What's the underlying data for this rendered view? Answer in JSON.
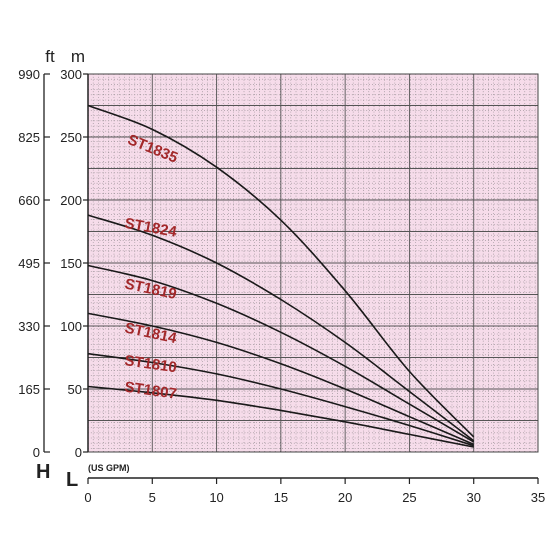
{
  "chart_data": {
    "type": "line",
    "title": "",
    "xlabel": "L",
    "xunit": "(US GPM)",
    "ylabel": "H",
    "y_unit_left": "ft",
    "y_unit_right": "m",
    "xlim": [
      0,
      35
    ],
    "x_ticks": [
      0,
      5,
      10,
      15,
      20,
      25,
      30,
      35
    ],
    "ylim_m": [
      0,
      300
    ],
    "y_ticks_m": [
      0,
      50,
      100,
      150,
      200,
      250,
      300
    ],
    "y_ticks_ft": [
      0,
      165,
      330,
      495,
      660,
      825,
      990
    ],
    "grid": true,
    "background_color": "#f6dcea",
    "grid_color": "#555555",
    "label_color": "#a3282a",
    "line_color": "#1a1a1a",
    "series": [
      {
        "name": "ST1835",
        "label_at": [
          3.0,
          245
        ],
        "label_angle": 22,
        "x": [
          0,
          5,
          10,
          15,
          20,
          25,
          30
        ],
        "values": [
          275,
          256,
          226,
          184,
          128,
          64,
          12
        ]
      },
      {
        "name": "ST1824",
        "label_at": [
          2.8,
          178
        ],
        "label_angle": 10,
        "x": [
          0,
          5,
          10,
          15,
          20,
          25,
          30
        ],
        "values": [
          188,
          172,
          150,
          121,
          87,
          48,
          9
        ]
      },
      {
        "name": "ST1819",
        "label_at": [
          2.8,
          130
        ],
        "label_angle": 12,
        "x": [
          0,
          5,
          10,
          15,
          20,
          25,
          30
        ],
        "values": [
          148,
          136,
          118,
          95,
          68,
          38,
          8
        ]
      },
      {
        "name": "ST1814",
        "label_at": [
          2.8,
          95
        ],
        "label_angle": 12,
        "x": [
          0,
          5,
          10,
          15,
          20,
          25,
          30
        ],
        "values": [
          110,
          100,
          87,
          70,
          50,
          28,
          6
        ]
      },
      {
        "name": "ST1810",
        "label_at": [
          2.8,
          69
        ],
        "label_angle": 8,
        "x": [
          0,
          5,
          10,
          15,
          20,
          25,
          30
        ],
        "values": [
          78,
          71,
          62,
          50,
          36,
          21,
          5
        ]
      },
      {
        "name": "ST1807",
        "label_at": [
          2.8,
          48
        ],
        "label_angle": 8,
        "x": [
          0,
          5,
          10,
          15,
          20,
          25,
          30
        ],
        "values": [
          52,
          47,
          41,
          33,
          24,
          14,
          4
        ]
      }
    ]
  }
}
